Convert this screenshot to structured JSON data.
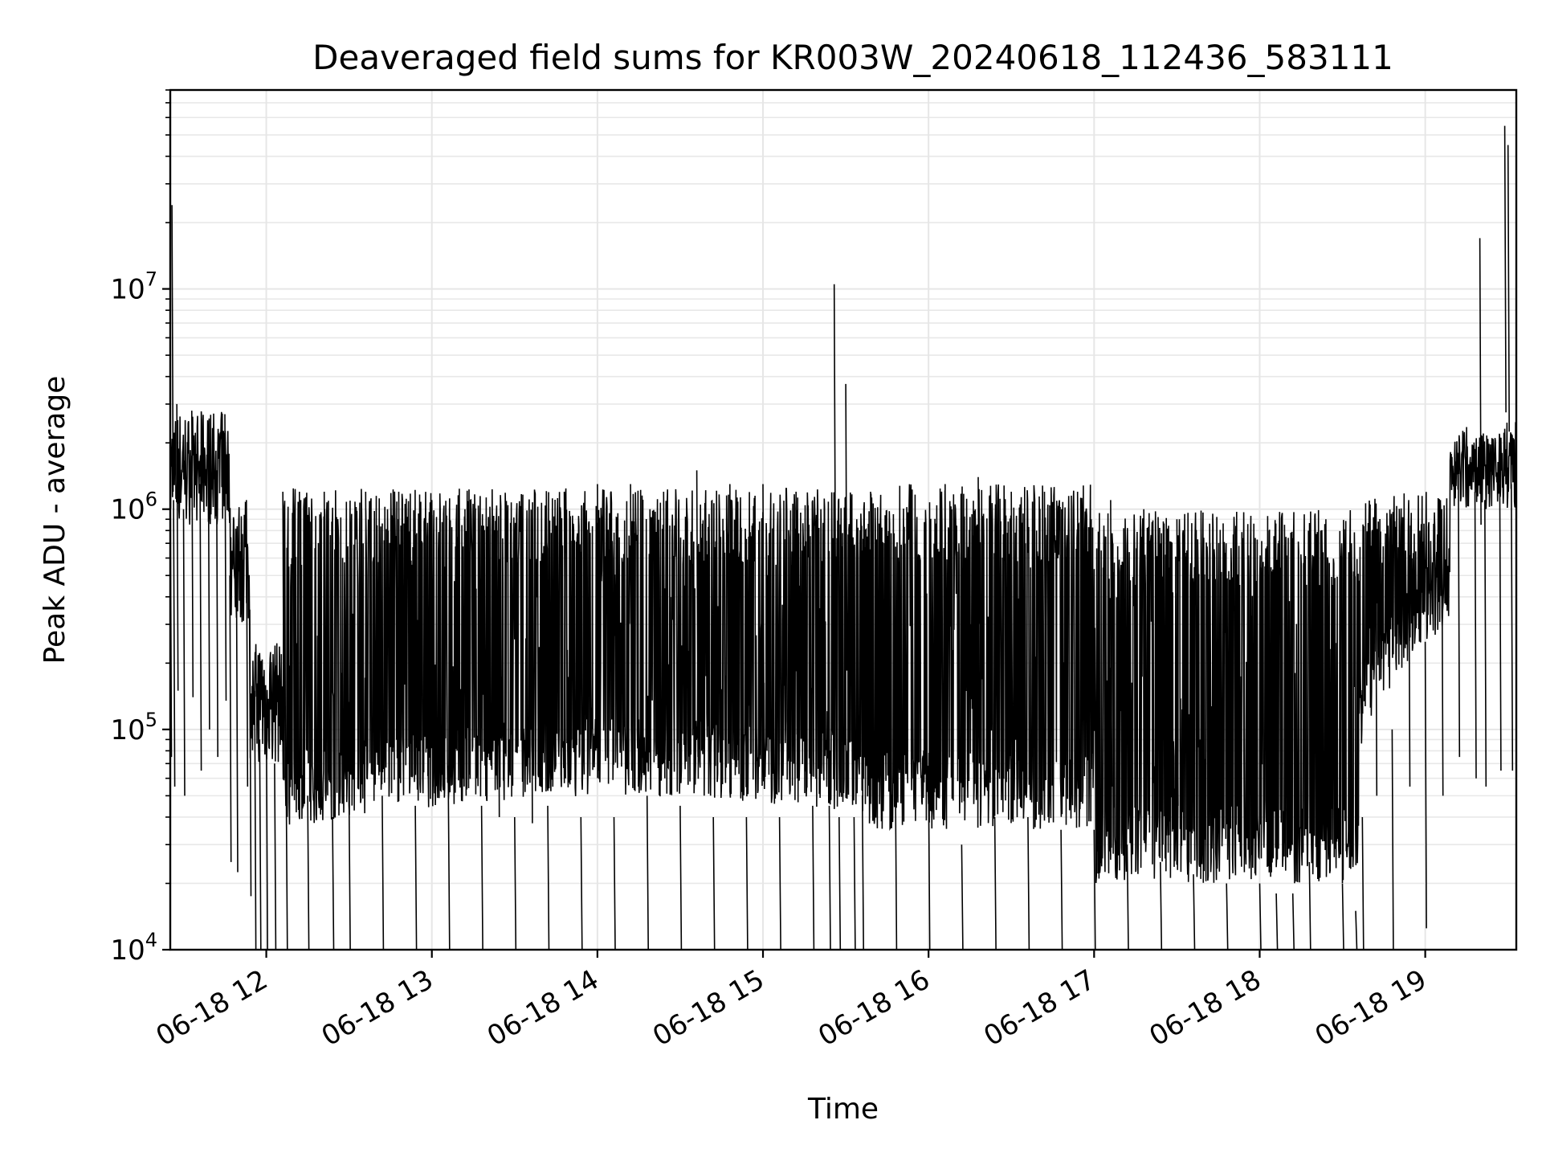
{
  "chart_data": {
    "type": "line",
    "title": "Deaveraged field sums for KR003W_20240618_112436_583111",
    "xlabel": "Time",
    "ylabel": "Peak ADU - average",
    "x_tick_labels": [
      "06-18 12",
      "06-18 13",
      "06-18 14",
      "06-18 15",
      "06-18 16",
      "06-18 17",
      "06-18 18",
      "06-18 19"
    ],
    "x_tick_hours": [
      12,
      13,
      14,
      15,
      16,
      17,
      18,
      19
    ],
    "xlim": [
      "06-18 11:25",
      "06-18 19:33"
    ],
    "y_scale": "log",
    "ylim": [
      10000,
      80000000
    ],
    "y_ticks": [
      {
        "base": "10",
        "exp": "4",
        "value": 10000
      },
      {
        "base": "10",
        "exp": "5",
        "value": 100000
      },
      {
        "base": "10",
        "exp": "6",
        "value": 1000000
      },
      {
        "base": "10",
        "exp": "7",
        "value": 10000000
      }
    ],
    "grid": true,
    "line_color": "#000000",
    "series": [
      {
        "envelope_note_hours": [
          11.42,
          19.55
        ],
        "points": [
          [
            11.42,
            1500000
          ],
          [
            11.43,
            24000000
          ],
          [
            11.44,
            1100000
          ],
          [
            11.46,
            3000000
          ],
          [
            11.5,
            1000000
          ],
          [
            11.55,
            2800000
          ],
          [
            11.6,
            1300000
          ],
          [
            11.65,
            2000000
          ],
          [
            11.7,
            1500000
          ],
          [
            11.75,
            2700000
          ],
          [
            11.78,
            500000
          ],
          [
            11.82,
            450000
          ],
          [
            11.88,
            1100000
          ],
          [
            11.9,
            350000
          ],
          [
            11.93,
            150000
          ],
          [
            11.96,
            90000
          ],
          [
            12.0,
            130000
          ],
          [
            12.05,
            70000
          ],
          [
            12.1,
            1200000
          ],
          [
            12.12,
            60000
          ],
          [
            12.2,
            1200000
          ],
          [
            12.25,
            50000
          ],
          [
            12.35,
            1200000
          ],
          [
            12.4,
            40000
          ],
          [
            12.5,
            50000
          ],
          [
            12.6,
            1200000
          ],
          [
            12.7,
            50000
          ],
          [
            12.8,
            1200000
          ],
          [
            12.9,
            45000
          ],
          [
            13.0,
            1100000
          ],
          [
            13.1,
            50000
          ],
          [
            13.2,
            1000000
          ],
          [
            13.3,
            45000
          ],
          [
            13.4,
            800000
          ],
          [
            13.5,
            40000
          ],
          [
            13.6,
            750000
          ],
          [
            13.7,
            45000
          ],
          [
            13.8,
            1200000
          ],
          [
            13.9,
            40000
          ],
          [
            14.0,
            1300000
          ],
          [
            14.1,
            40000
          ],
          [
            14.2,
            1300000
          ],
          [
            14.3,
            50000
          ],
          [
            14.4,
            1200000
          ],
          [
            14.5,
            45000
          ],
          [
            14.6,
            1500000
          ],
          [
            14.7,
            40000
          ],
          [
            14.8,
            1300000
          ],
          [
            14.9,
            40000
          ],
          [
            15.0,
            1300000
          ],
          [
            15.1,
            40000
          ],
          [
            15.2,
            1200000
          ],
          [
            15.3,
            45000
          ],
          [
            15.4,
            45000
          ],
          [
            15.43,
            10500000
          ],
          [
            15.46,
            40000
          ],
          [
            15.5,
            3700000
          ],
          [
            15.55,
            40000
          ],
          [
            15.6,
            50000
          ],
          [
            15.65,
            1200000
          ],
          [
            15.8,
            60000
          ],
          [
            15.9,
            1200000
          ],
          [
            16.0,
            60000
          ],
          [
            16.1,
            1300000
          ],
          [
            16.2,
            30000
          ],
          [
            16.3,
            1400000
          ],
          [
            16.4,
            40000
          ],
          [
            16.5,
            1200000
          ],
          [
            16.6,
            40000
          ],
          [
            16.7,
            1200000
          ],
          [
            16.8,
            35000
          ],
          [
            16.9,
            1200000
          ],
          [
            17.0,
            35000
          ],
          [
            17.1,
            1100000
          ],
          [
            17.2,
            30000
          ],
          [
            17.3,
            1000000
          ],
          [
            17.4,
            25000
          ],
          [
            17.5,
            900000
          ],
          [
            17.6,
            22000
          ],
          [
            17.7,
            700000
          ],
          [
            17.8,
            20000
          ],
          [
            17.9,
            450000
          ],
          [
            18.0,
            20000
          ],
          [
            18.05,
            800000
          ],
          [
            18.1,
            18000
          ],
          [
            18.15,
            850000
          ],
          [
            18.2,
            18000
          ],
          [
            18.3,
            25000
          ],
          [
            18.4,
            900000
          ],
          [
            18.5,
            20000
          ],
          [
            18.58,
            15000
          ],
          [
            18.62,
            40000
          ],
          [
            18.7,
            1000000
          ],
          [
            18.8,
            100000
          ],
          [
            18.9,
            1100000
          ],
          [
            19.0,
            250000
          ],
          [
            19.1,
            1000000
          ],
          [
            19.2,
            1500000
          ],
          [
            19.3,
            1200000
          ],
          [
            19.33,
            17000000
          ],
          [
            19.36,
            1100000
          ],
          [
            19.45,
            1300000
          ],
          [
            19.48,
            55000000
          ],
          [
            19.5,
            45000000
          ],
          [
            19.52,
            1300000
          ],
          [
            19.55,
            1400000
          ]
        ]
      }
    ]
  }
}
